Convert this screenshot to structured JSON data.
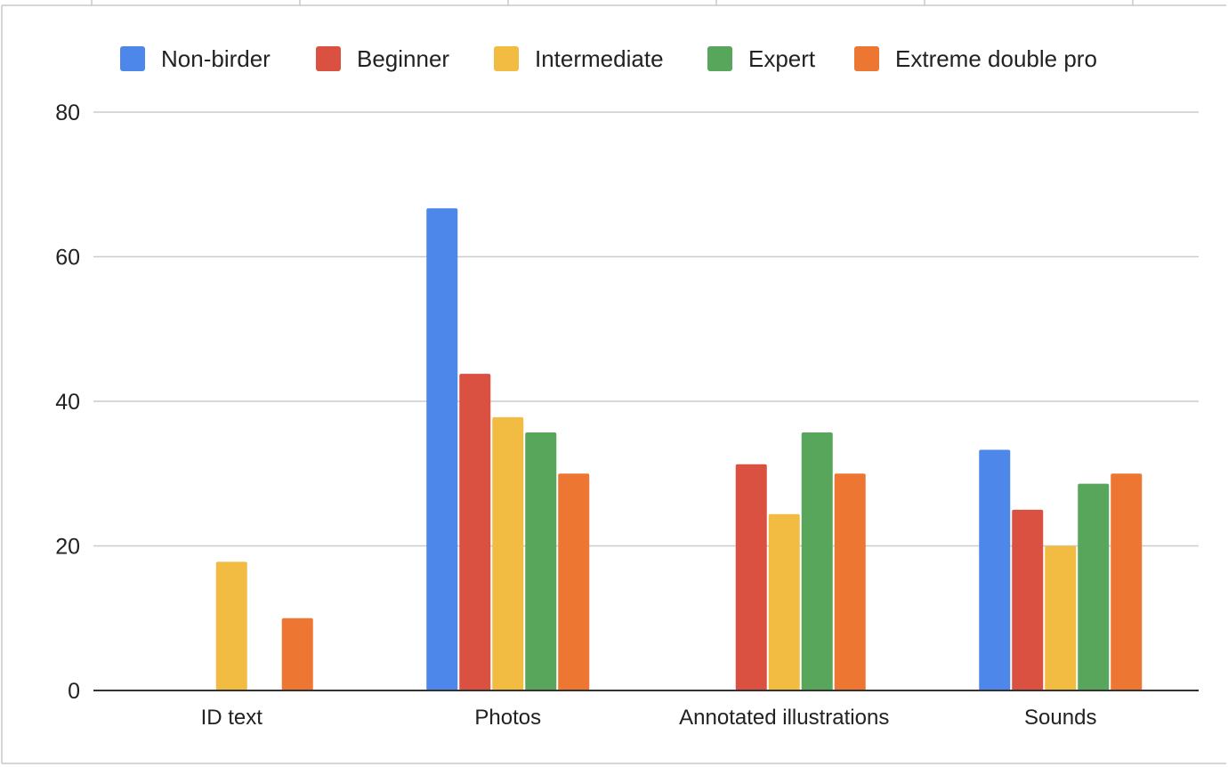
{
  "chart_data": {
    "type": "bar",
    "title": "",
    "xlabel": "",
    "ylabel": "",
    "categories": [
      "ID text",
      "Photos",
      "Annotated illustrations",
      "Sounds"
    ],
    "series": [
      {
        "name": "Non-birder",
        "color": "#4e87ea",
        "values": [
          0,
          66.7,
          0,
          33.3
        ]
      },
      {
        "name": "Beginner",
        "color": "#da5142",
        "values": [
          0,
          43.8,
          31.3,
          25
        ]
      },
      {
        "name": "Intermediate",
        "color": "#f2bc42",
        "values": [
          17.8,
          37.8,
          24.4,
          20
        ]
      },
      {
        "name": "Expert",
        "color": "#58a65c",
        "values": [
          0,
          35.7,
          35.7,
          28.6
        ]
      },
      {
        "name": "Extreme double pro",
        "color": "#ee7633",
        "values": [
          10,
          30,
          30,
          30
        ]
      }
    ],
    "ylim": [
      0,
      80
    ],
    "yticks": [
      "0",
      "20",
      "40",
      "60",
      "80"
    ],
    "ytick_values": [
      0,
      20,
      40,
      60,
      80
    ],
    "grid": true,
    "legend_position": "top"
  }
}
